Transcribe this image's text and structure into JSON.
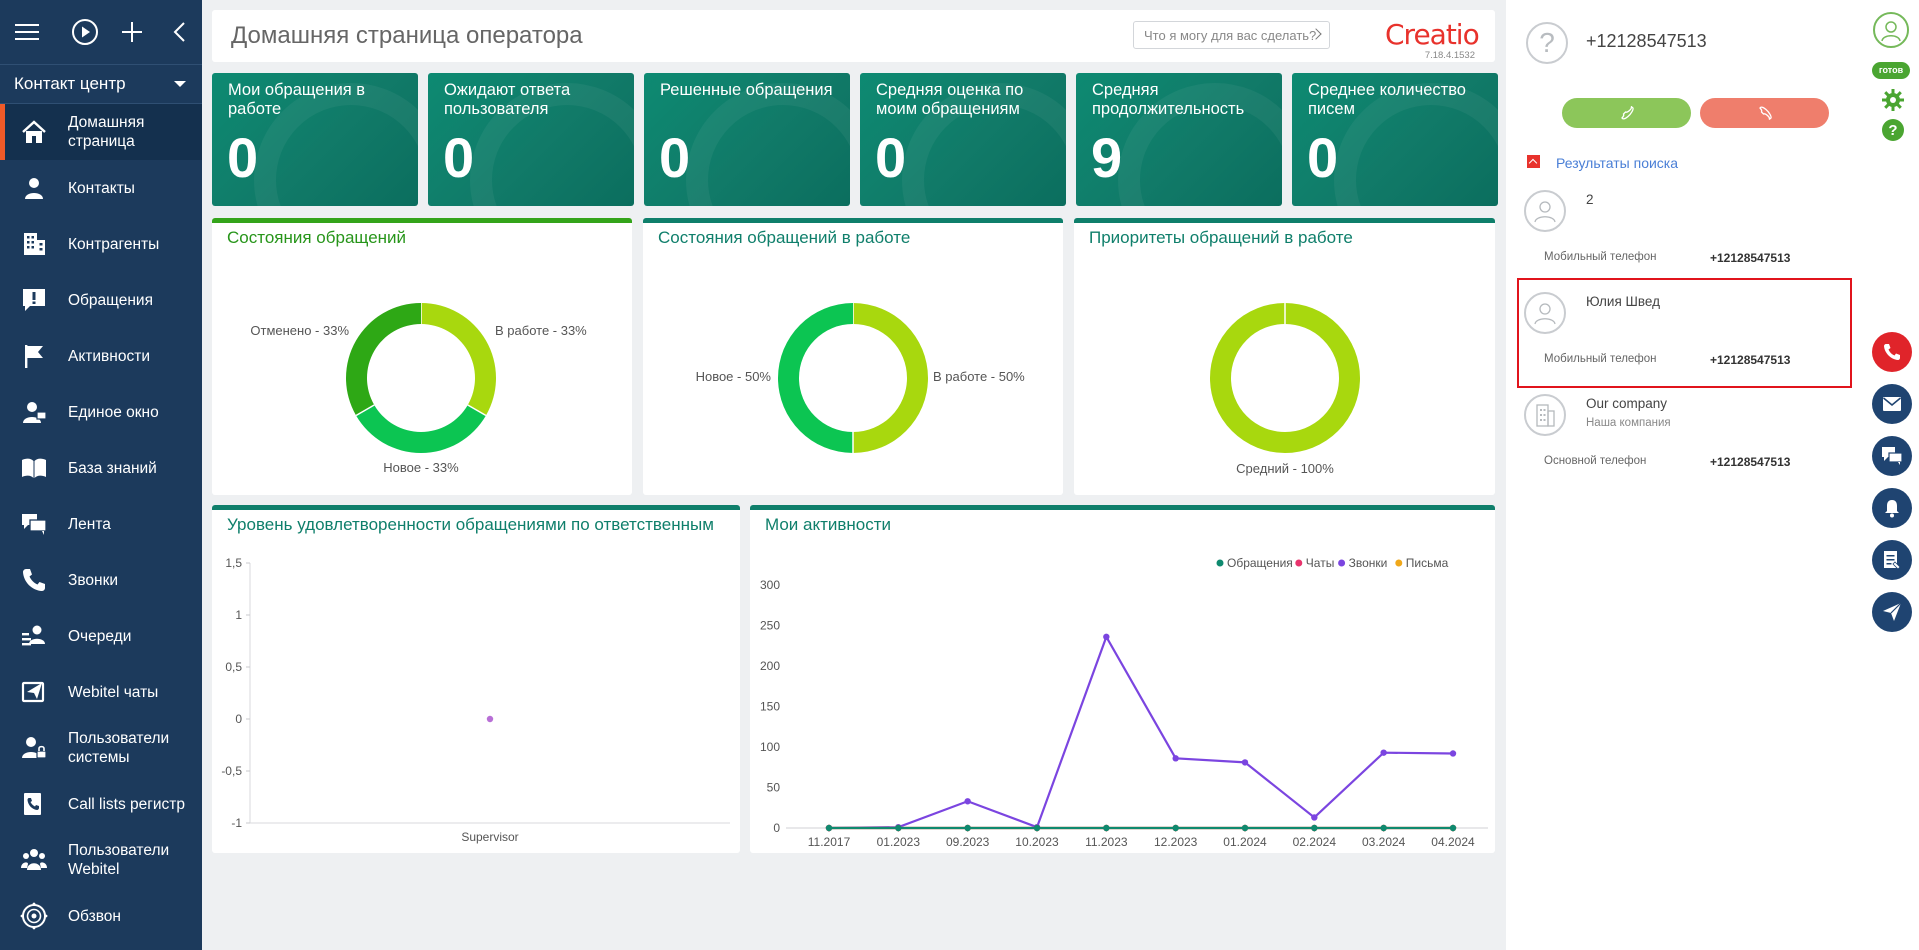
{
  "sidebar": {
    "workplace": "Контакт центр",
    "items": [
      {
        "label": "Домашняя страница",
        "icon": "home-icon",
        "active": true
      },
      {
        "label": "Контакты",
        "icon": "person-icon"
      },
      {
        "label": "Контрагенты",
        "icon": "building-icon"
      },
      {
        "label": "Обращения",
        "icon": "case-icon"
      },
      {
        "label": "Активности",
        "icon": "flag-icon"
      },
      {
        "label": "Единое окно",
        "icon": "user-window-icon"
      },
      {
        "label": "База знаний",
        "icon": "book-icon"
      },
      {
        "label": "Лента",
        "icon": "feed-icon"
      },
      {
        "label": "Звонки",
        "icon": "phone-icon"
      },
      {
        "label": "Очереди",
        "icon": "queue-icon"
      },
      {
        "label": "Webitel чаты",
        "icon": "chat-send-icon"
      },
      {
        "label": "Пользователи системы",
        "icon": "system-users-icon"
      },
      {
        "label": "Call lists регистр",
        "icon": "call-list-icon"
      },
      {
        "label": "Пользователи Webitel",
        "icon": "webitel-users-icon"
      },
      {
        "label": "Обзвон",
        "icon": "dialer-icon"
      }
    ]
  },
  "header": {
    "title": "Домашняя страница оператора",
    "search_placeholder": "Что я могу для вас сделать?",
    "logo": "Creatio",
    "version": "7.18.4.1532"
  },
  "kpis": [
    {
      "title": "Мои обращения в работе",
      "value": "0"
    },
    {
      "title": "Ожидают ответа пользователя",
      "value": "0"
    },
    {
      "title": "Решенные обращения",
      "value": "0"
    },
    {
      "title": "Средняя оценка по моим обращениям",
      "value": "0"
    },
    {
      "title": "Средняя продолжительность",
      "value": "9"
    },
    {
      "title": "Среднее количество писем",
      "value": "0"
    }
  ],
  "colors": {
    "sidebar_bg": "#1c3a5c",
    "accent": "#f05a28",
    "tile_green": "#0f7f6b",
    "donut_lime": "#a8d80e",
    "donut_green": "#0cc552",
    "donut_dark": "#2ea815",
    "series_cases": "#0f8a6f",
    "series_chats": "#e8336c",
    "series_calls": "#7b45e0",
    "series_emails": "#f0a81a"
  },
  "chart_data": [
    {
      "type": "pie",
      "title": "Состояния обращений",
      "donut": true,
      "slices": [
        {
          "label": "В работе - 33%",
          "value": 33.33,
          "color": "#a8d80e"
        },
        {
          "label": "Новое - 33%",
          "value": 33.33,
          "color": "#0cc552"
        },
        {
          "label": "Отменено - 33%",
          "value": 33.33,
          "color": "#2ea815"
        }
      ]
    },
    {
      "type": "pie",
      "title": "Состояния обращений в работе",
      "donut": true,
      "slices": [
        {
          "label": "В работе - 50%",
          "value": 50,
          "color": "#a8d80e"
        },
        {
          "label": "Новое - 50%",
          "value": 50,
          "color": "#0cc552"
        }
      ]
    },
    {
      "type": "pie",
      "title": "Приоритеты обращений в работе",
      "donut": true,
      "slices": [
        {
          "label": "Средний - 100%",
          "value": 100,
          "color": "#a8d80e"
        }
      ]
    },
    {
      "type": "scatter",
      "title": "Уровень удовлетворенности обращениями по ответственным",
      "categories": [
        "Supervisor"
      ],
      "values": [
        0
      ],
      "ylim": [
        -1,
        1.5
      ],
      "yticks": [
        "-1",
        "-0,5",
        "0",
        "0,5",
        "1",
        "1,5"
      ],
      "ytick_values": [
        -1,
        -0.5,
        0,
        0.5,
        1,
        1.5
      ],
      "point_color": "#b86fd6"
    },
    {
      "type": "line",
      "title": "Мои активности",
      "categories": [
        "11.2017",
        "01.2023",
        "09.2023",
        "10.2023",
        "11.2023",
        "12.2023",
        "01.2024",
        "02.2024",
        "03.2024",
        "04.2024"
      ],
      "ylim": [
        0,
        300
      ],
      "yticks": [
        0,
        50,
        100,
        150,
        200,
        250,
        300
      ],
      "legend": "top-right",
      "series": [
        {
          "name": "Обращения",
          "color": "#0f8a6f",
          "values": [
            0,
            0,
            0,
            0,
            0,
            0,
            0,
            0,
            0,
            0
          ]
        },
        {
          "name": "Чаты",
          "color": "#e8336c",
          "values": [
            0,
            0,
            0,
            0,
            0,
            0,
            0,
            0,
            0,
            0
          ]
        },
        {
          "name": "Звонки",
          "color": "#7b45e0",
          "values": [
            0,
            1,
            33,
            1,
            236,
            86,
            81,
            13,
            93,
            92
          ]
        },
        {
          "name": "Письма",
          "color": "#f0a81a",
          "values": [
            0,
            0,
            0,
            0,
            0,
            0,
            0,
            0,
            0,
            0
          ]
        }
      ]
    }
  ],
  "comm_panel": {
    "caller_number": "+12128547513",
    "caller_avatar": "?",
    "search_results_title": "Результаты поиска",
    "results": [
      {
        "name": "2",
        "sub": "",
        "phone_label": "Мобильный телефон",
        "phone": "+12128547513",
        "type": "contact"
      },
      {
        "name": "Юлия Швед",
        "sub": "",
        "phone_label": "Мобильный телефон",
        "phone": "+12128547513",
        "type": "contact",
        "selected": true
      },
      {
        "name": "Our company",
        "sub": "Наша компания",
        "phone_label": "Основной телефон",
        "phone": "+12128547513",
        "type": "account"
      }
    ]
  },
  "right_bar": {
    "status": "готов"
  }
}
